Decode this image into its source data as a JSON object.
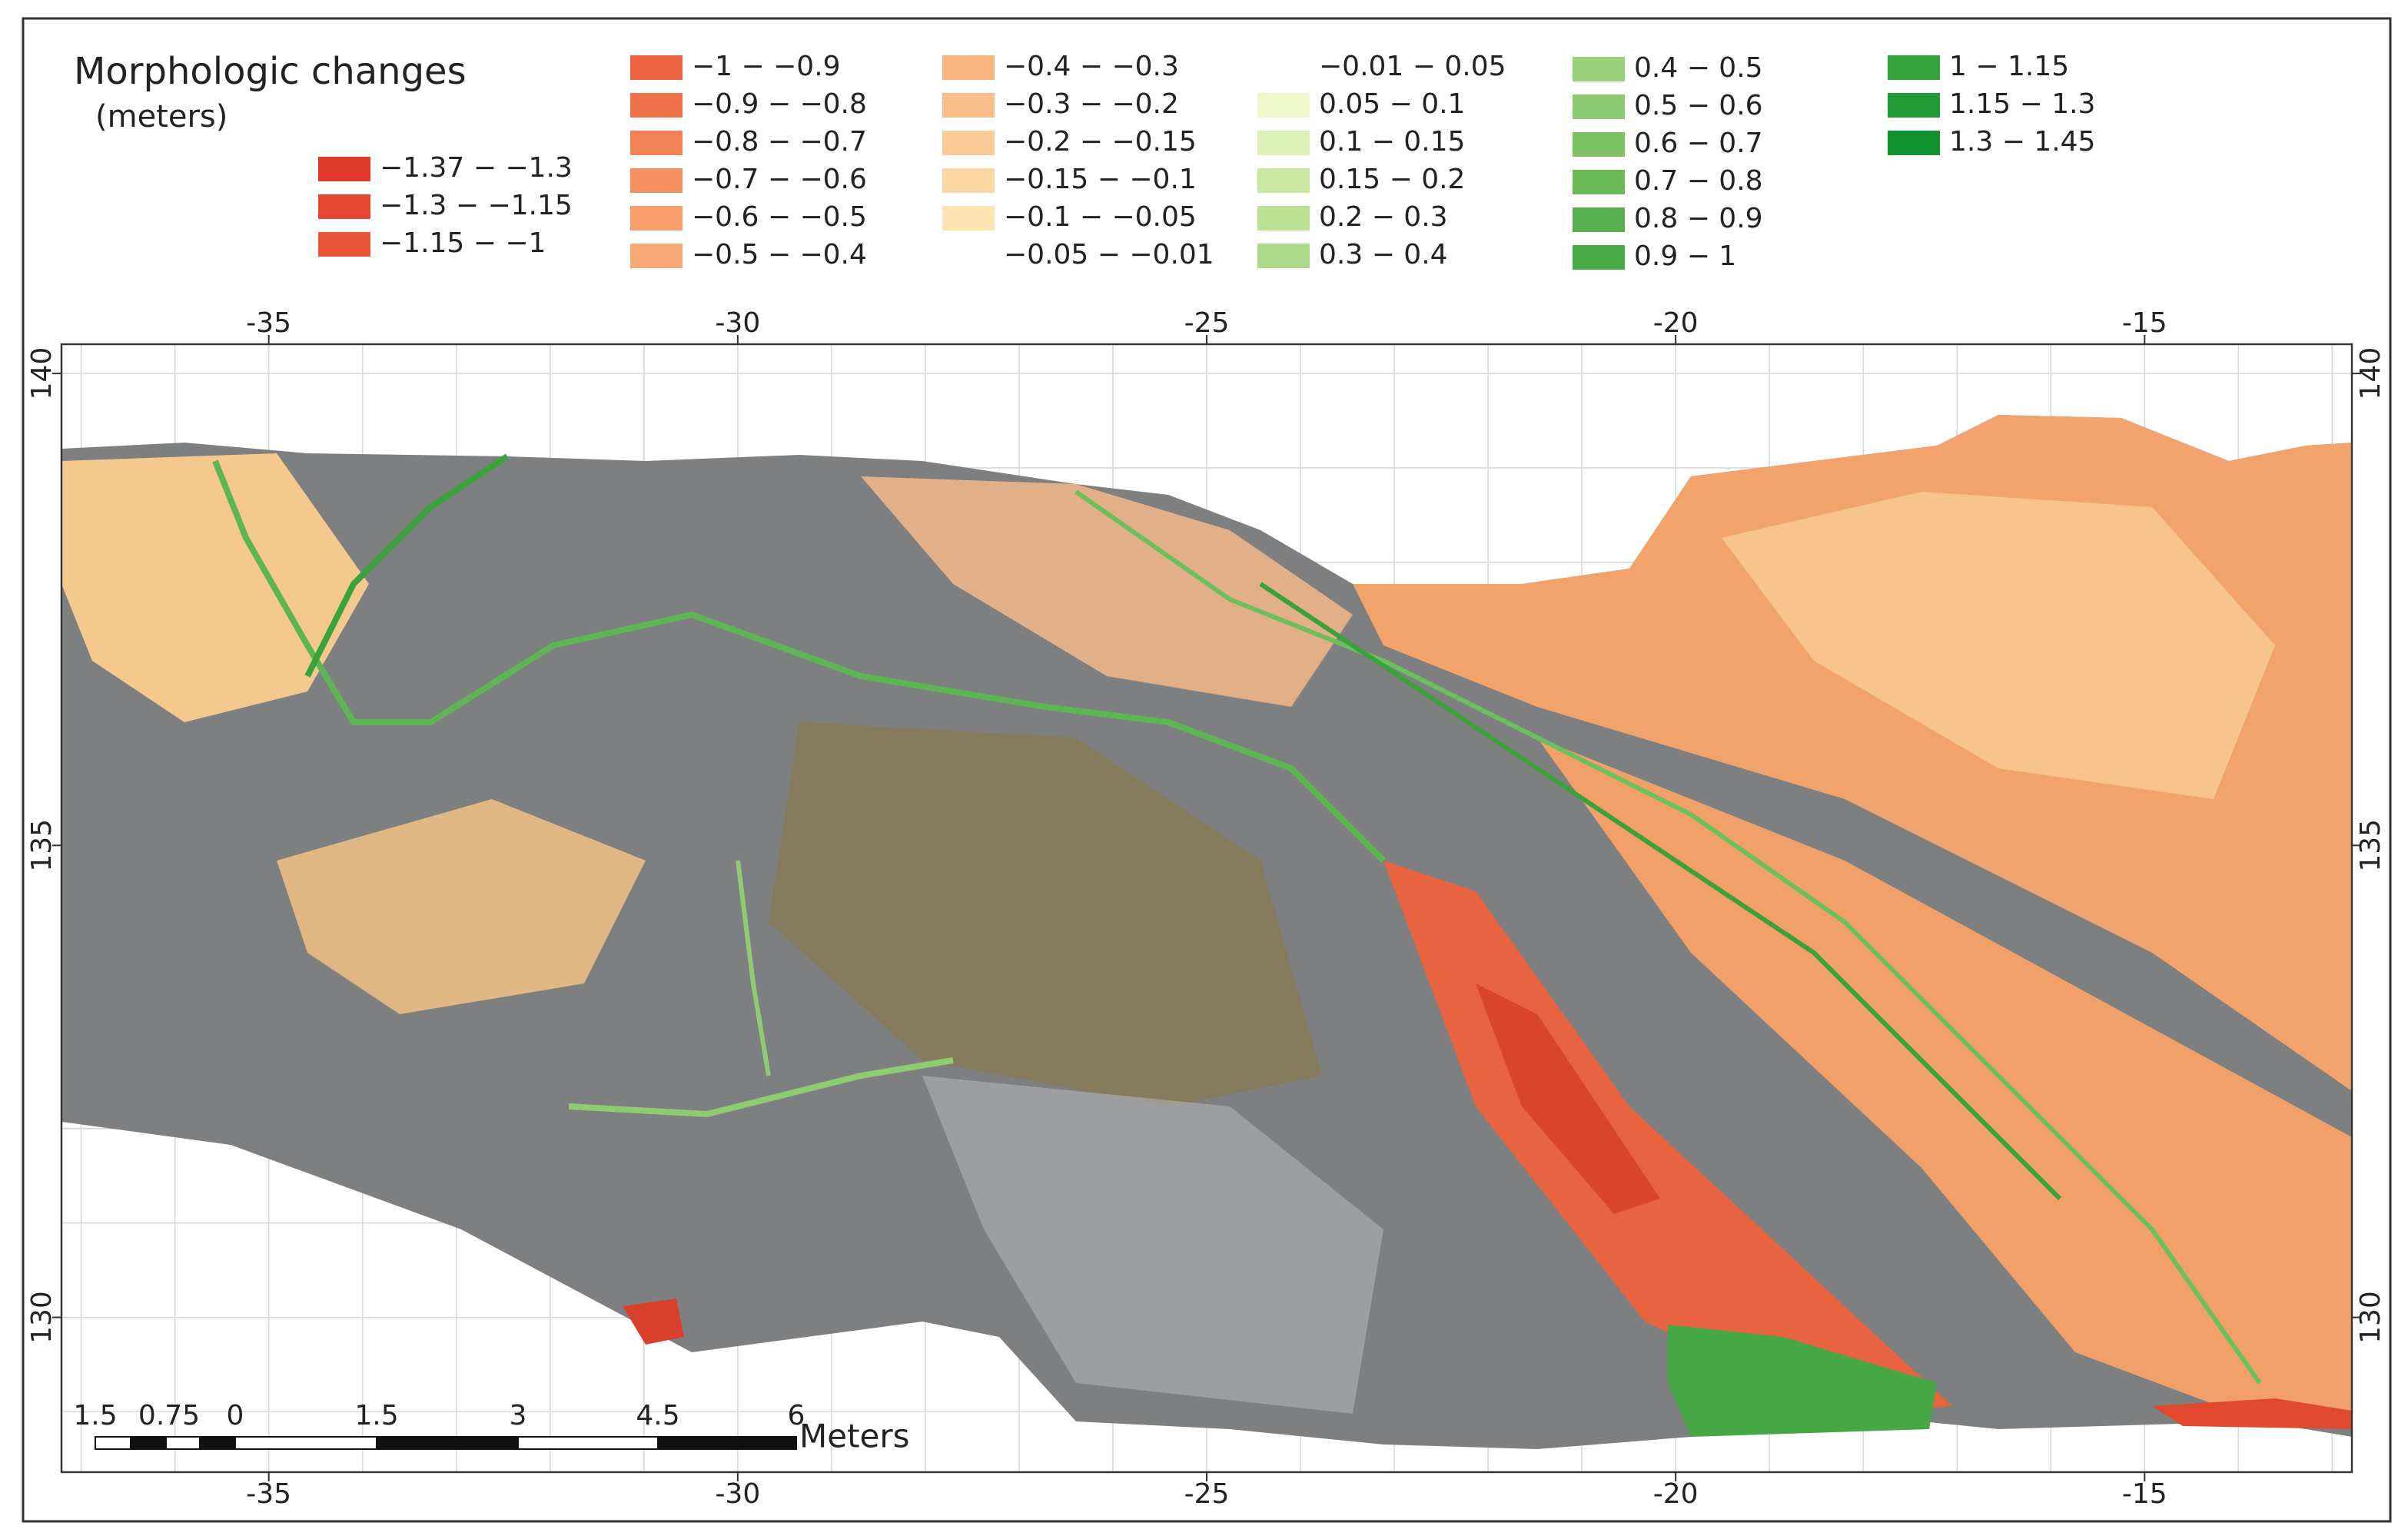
{
  "title": "Morphologic changes",
  "subtitle": "(meters)",
  "legend": {
    "columns": [
      [
        {
          "label": "−1.37 − −1.3",
          "color": "#e0392b"
        },
        {
          "label": "−1.3 − −1.15",
          "color": "#e4472f"
        },
        {
          "label": "−1.15 − −1",
          "color": "#e95536"
        }
      ],
      [
        {
          "label": "−1 − −0.9",
          "color": "#ee6440"
        },
        {
          "label": "−0.9 − −0.8",
          "color": "#f1734a"
        },
        {
          "label": "−0.8 − −0.7",
          "color": "#f38255"
        },
        {
          "label": "−0.7 − −0.6",
          "color": "#f5905f"
        },
        {
          "label": "−0.6 − −0.5",
          "color": "#f69d6a"
        },
        {
          "label": "−0.5 − −0.4",
          "color": "#f7a975"
        }
      ],
      [
        {
          "label": "−0.4 − −0.3",
          "color": "#f8b580"
        },
        {
          "label": "−0.3 − −0.2",
          "color": "#f9c08b"
        },
        {
          "label": "−0.2 − −0.15",
          "color": "#facb97"
        },
        {
          "label": "−0.15 − −0.1",
          "color": "#fbd7a3"
        },
        {
          "label": "−0.1 − −0.05",
          "color": "#fde4b2"
        },
        {
          "label": "−0.05 − −0.01",
          "color": "#ffffff"
        }
      ],
      [
        {
          "label": "−0.01 −  0.05",
          "color": "#ffffff"
        },
        {
          "label": "0.05 −  0.1",
          "color": "#eef7c9"
        },
        {
          "label": "0.1 −  0.15",
          "color": "#dcefb5"
        },
        {
          "label": "0.15 −  0.2",
          "color": "#cbe8a3"
        },
        {
          "label": "0.2 −  0.3",
          "color": "#bbe194"
        },
        {
          "label": "0.3 −  0.4",
          "color": "#abd987"
        }
      ],
      [
        {
          "label": "0.4 −  0.5",
          "color": "#9bd17b"
        },
        {
          "label": "0.5 −  0.6",
          "color": "#8bca70"
        },
        {
          "label": "0.6 −  0.7",
          "color": "#7bc265"
        },
        {
          "label": "0.7 −  0.8",
          "color": "#6aba5a"
        },
        {
          "label": "0.8 −  0.9",
          "color": "#58b24f"
        },
        {
          "label": "0.9 −  1",
          "color": "#46aa45"
        }
      ],
      [
        {
          "label": "1 −  1.15",
          "color": "#33a23c"
        },
        {
          "label": "1.15 −  1.3",
          "color": "#229a35"
        },
        {
          "label": "1.3 − 1.45",
          "color": "#12922e"
        }
      ]
    ]
  },
  "map": {
    "xlim": [
      -37.21,
      -12.79
    ],
    "ylim": [
      128.36,
      140.31
    ],
    "xticks": [
      -35,
      -30,
      -25,
      -20,
      -15
    ],
    "yticks": [
      130,
      135,
      140
    ]
  },
  "scale_bar": {
    "labels": [
      "1.5",
      "0.75",
      "0",
      "1.5",
      "3",
      "4.5",
      "6"
    ],
    "unit": "Meters"
  }
}
